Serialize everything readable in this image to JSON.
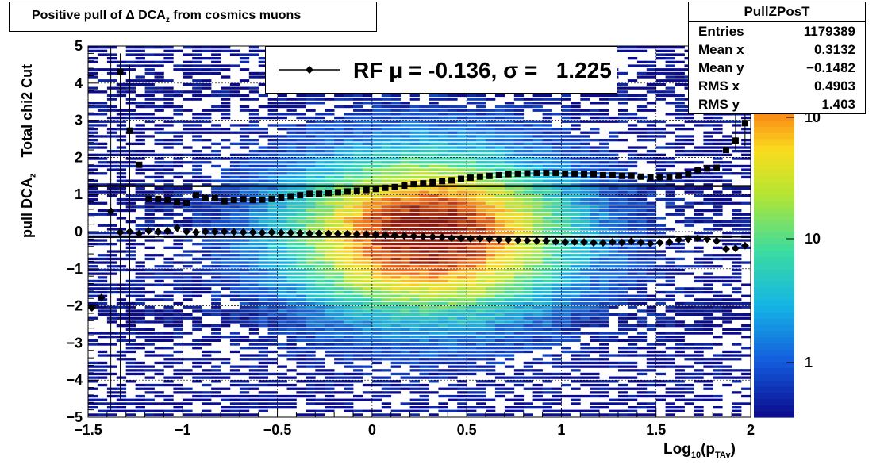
{
  "title": {
    "main": "Positive pull of Δ DCA",
    "sub": "z",
    "rest": " from cosmics muons"
  },
  "stats": {
    "name": "PullZPosT",
    "rows": [
      {
        "key": "Entries",
        "value": "1179389"
      },
      {
        "key": "Mean x",
        "value": "0.3132"
      },
      {
        "key": "Mean y",
        "value": "−0.1482"
      },
      {
        "key": "RMS x",
        "value": "0.4903"
      },
      {
        "key": "RMS y",
        "value": "1.403"
      }
    ]
  },
  "legend": {
    "text": "RF μ = -0.136, σ =   1.225"
  },
  "axes": {
    "ylabel_main": "pull DCA",
    "ylabel_sub": "z",
    "ylabel_rest": "    Total chi2 Cut",
    "xlabel_main": "Log",
    "xlabel_sub1": "10",
    "xlabel_mid": "(p",
    "xlabel_sub2": "TAv",
    "xlabel_end": ")"
  },
  "chart_data": {
    "type": "heatmap",
    "xlim": [
      -1.5,
      2
    ],
    "ylim": [
      -5,
      5
    ],
    "xticks": [
      "−1.5",
      "−1",
      "−0.5",
      "0",
      "0.5",
      "1",
      "1.5",
      "2"
    ],
    "yticks": [
      "−5",
      "−4",
      "−3",
      "−2",
      "−1",
      "0",
      "1",
      "2",
      "3",
      "4",
      "5"
    ],
    "colorbar": {
      "scale": "log",
      "labels": [
        "1",
        "10",
        "10"
      ]
    },
    "grid": true,
    "fit_lines": [
      {
        "y": -0.136
      },
      {
        "y": 1.225
      }
    ],
    "series": [
      {
        "marker": "diamond",
        "x": [
          -1.48,
          -1.43,
          -1.38,
          -1.33,
          -1.28,
          -1.23,
          -1.18,
          -1.13,
          -1.08,
          -1.03,
          -0.98,
          -0.93,
          -0.88,
          -0.83,
          -0.78,
          -0.73,
          -0.68,
          -0.63,
          -0.58,
          -0.53,
          -0.48,
          -0.43,
          -0.38,
          -0.33,
          -0.28,
          -0.23,
          -0.18,
          -0.13,
          -0.08,
          -0.03,
          0.02,
          0.07,
          0.12,
          0.17,
          0.22,
          0.27,
          0.32,
          0.37,
          0.42,
          0.47,
          0.52,
          0.57,
          0.62,
          0.67,
          0.72,
          0.77,
          0.82,
          0.87,
          0.92,
          0.97,
          1.02,
          1.07,
          1.12,
          1.17,
          1.22,
          1.27,
          1.32,
          1.37,
          1.42,
          1.47,
          1.52,
          1.57,
          1.62,
          1.67,
          1.72,
          1.77,
          1.82,
          1.87,
          1.92,
          1.97
        ],
        "values": [
          -2.05,
          -1.78,
          0.55,
          -0.02,
          0.0,
          -0.05,
          0.02,
          0.0,
          0.02,
          0.1,
          0.0,
          -0.02,
          0.0,
          0.0,
          0.0,
          -0.01,
          -0.02,
          -0.02,
          -0.03,
          -0.02,
          -0.03,
          -0.03,
          -0.04,
          -0.05,
          -0.05,
          -0.05,
          -0.06,
          -0.06,
          -0.07,
          -0.07,
          -0.08,
          -0.09,
          -0.1,
          -0.11,
          -0.12,
          -0.13,
          -0.14,
          -0.15,
          -0.17,
          -0.18,
          -0.19,
          -0.19,
          -0.2,
          -0.22,
          -0.22,
          -0.23,
          -0.24,
          -0.25,
          -0.25,
          -0.27,
          -0.28,
          -0.28,
          -0.28,
          -0.3,
          -0.3,
          -0.28,
          -0.29,
          -0.26,
          -0.29,
          -0.32,
          -0.3,
          -0.28,
          -0.22,
          -0.2,
          -0.18,
          -0.2,
          -0.25,
          -0.47,
          -0.45,
          -0.38
        ]
      },
      {
        "marker": "square",
        "x": [
          -1.33,
          -1.28,
          -1.23,
          -1.18,
          -1.13,
          -1.08,
          -1.03,
          -0.98,
          -0.93,
          -0.88,
          -0.83,
          -0.78,
          -0.73,
          -0.68,
          -0.63,
          -0.58,
          -0.53,
          -0.48,
          -0.43,
          -0.38,
          -0.33,
          -0.28,
          -0.23,
          -0.18,
          -0.13,
          -0.08,
          -0.03,
          0.02,
          0.07,
          0.12,
          0.17,
          0.22,
          0.27,
          0.32,
          0.37,
          0.42,
          0.47,
          0.52,
          0.57,
          0.62,
          0.67,
          0.72,
          0.77,
          0.82,
          0.87,
          0.92,
          0.97,
          1.02,
          1.07,
          1.12,
          1.17,
          1.22,
          1.27,
          1.32,
          1.37,
          1.42,
          1.47,
          1.52,
          1.57,
          1.62,
          1.67,
          1.72,
          1.77,
          1.82,
          1.87,
          1.92,
          1.97
        ],
        "values": [
          4.3,
          2.72,
          1.8,
          0.88,
          0.88,
          0.85,
          0.8,
          0.77,
          0.98,
          0.9,
          0.9,
          0.82,
          0.85,
          0.87,
          0.85,
          0.86,
          0.88,
          0.92,
          0.95,
          0.98,
          1.02,
          1.02,
          1.04,
          1.06,
          1.08,
          1.1,
          1.12,
          1.15,
          1.18,
          1.2,
          1.24,
          1.28,
          1.3,
          1.33,
          1.36,
          1.38,
          1.42,
          1.45,
          1.48,
          1.5,
          1.52,
          1.55,
          1.56,
          1.57,
          1.58,
          1.58,
          1.58,
          1.56,
          1.56,
          1.55,
          1.55,
          1.52,
          1.52,
          1.5,
          1.5,
          1.48,
          1.46,
          1.46,
          1.47,
          1.5,
          1.55,
          1.65,
          1.7,
          1.72,
          2.2,
          2.45,
          2.92
        ]
      }
    ]
  }
}
